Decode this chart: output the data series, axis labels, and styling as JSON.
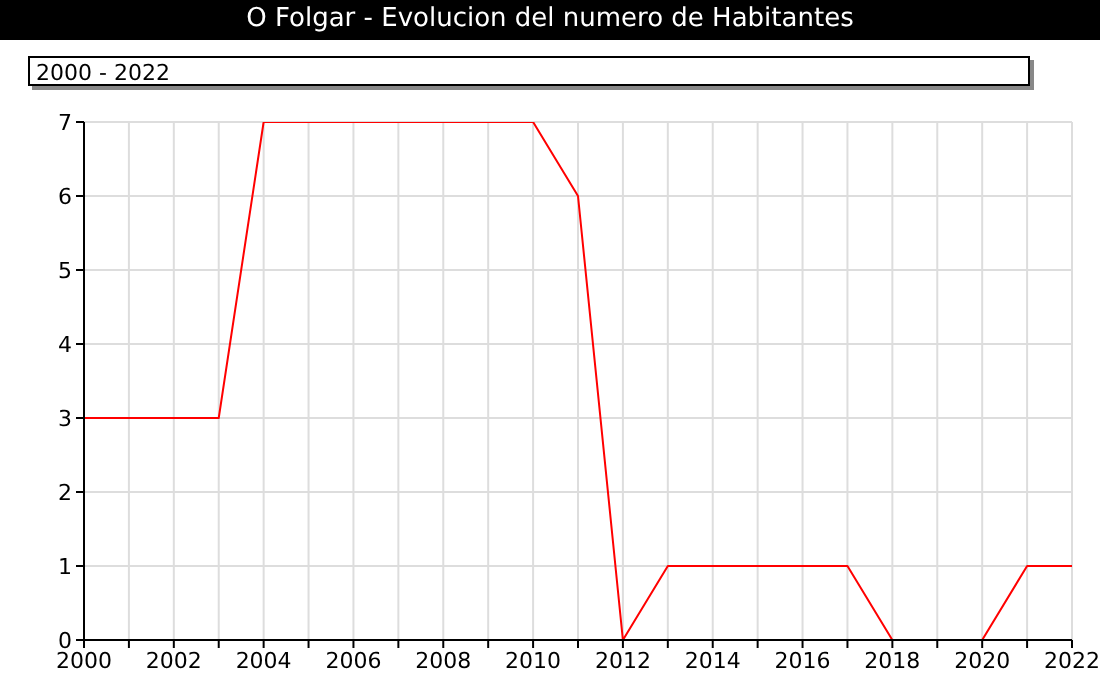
{
  "chart_data": {
    "type": "line",
    "title": "O Folgar - Evolucion del numero de Habitantes",
    "annotations": [
      "2000 - 2022"
    ],
    "x": [
      2000,
      2001,
      2002,
      2003,
      2004,
      2005,
      2006,
      2007,
      2008,
      2009,
      2010,
      2011,
      2012,
      2013,
      2014,
      2015,
      2016,
      2017,
      2018,
      2019,
      2020,
      2021,
      2022
    ],
    "series": [
      {
        "color": "#ff0000",
        "values": [
          3,
          3,
          3,
          3,
          7,
          7,
          7,
          7,
          7,
          7,
          7,
          6,
          0,
          1,
          1,
          1,
          1,
          1,
          0,
          0,
          0,
          1,
          1
        ]
      }
    ],
    "xlim": [
      2000,
      2022
    ],
    "xticks": [
      2000,
      {
        "value": 2001,
        "label": null
      },
      2002,
      {
        "value": 2003,
        "label": null
      },
      2004,
      {
        "value": 2005,
        "label": null
      },
      2006,
      {
        "value": 2007,
        "label": null
      },
      2008,
      {
        "value": 2009,
        "label": null
      },
      2010,
      {
        "value": 2011,
        "label": null
      },
      2012,
      {
        "value": 2013,
        "label": null
      },
      2014,
      {
        "value": 2015,
        "label": null
      },
      2016,
      {
        "value": 2017,
        "label": null
      },
      2018,
      {
        "value": 2019,
        "label": null
      },
      2020,
      {
        "value": 2021,
        "label": null
      },
      2022
    ],
    "ylim": [
      0,
      7
    ],
    "yticks": [
      0,
      1,
      2,
      3,
      4,
      5,
      6,
      7
    ],
    "grid": true,
    "marker": "none",
    "line_style": "solid"
  }
}
